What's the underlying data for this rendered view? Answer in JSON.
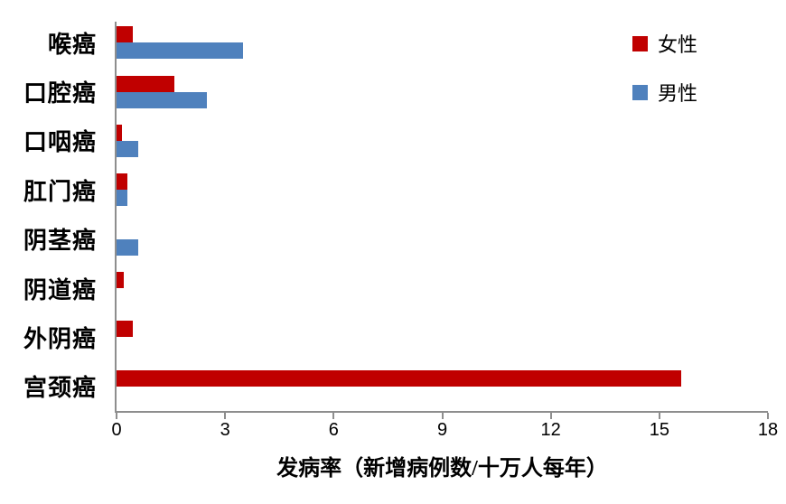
{
  "chart_data": {
    "type": "bar",
    "orientation": "horizontal",
    "title": "",
    "categories": [
      "喉癌",
      "口腔癌",
      "口咽癌",
      "肛门癌",
      "阴茎癌",
      "阴道癌",
      "外阴癌",
      "宫颈癌"
    ],
    "series": [
      {
        "name": "女性",
        "key": "female",
        "color": "#c00000",
        "values": [
          0.45,
          1.6,
          0.15,
          0.3,
          0,
          0.2,
          0.45,
          15.6
        ]
      },
      {
        "name": "男性",
        "key": "male",
        "color": "#4f81bd",
        "values": [
          3.5,
          2.5,
          0.6,
          0.3,
          0.6,
          0,
          0,
          0
        ]
      }
    ],
    "xlabel": "发病率（新增病例数/十万人每年）",
    "ylabel": "",
    "xlim": [
      0,
      18
    ],
    "xticks": [
      0,
      3,
      6,
      9,
      12,
      15,
      18
    ],
    "grid": false,
    "legend_position": "top-right",
    "axis_color": "#8e8e8e"
  }
}
